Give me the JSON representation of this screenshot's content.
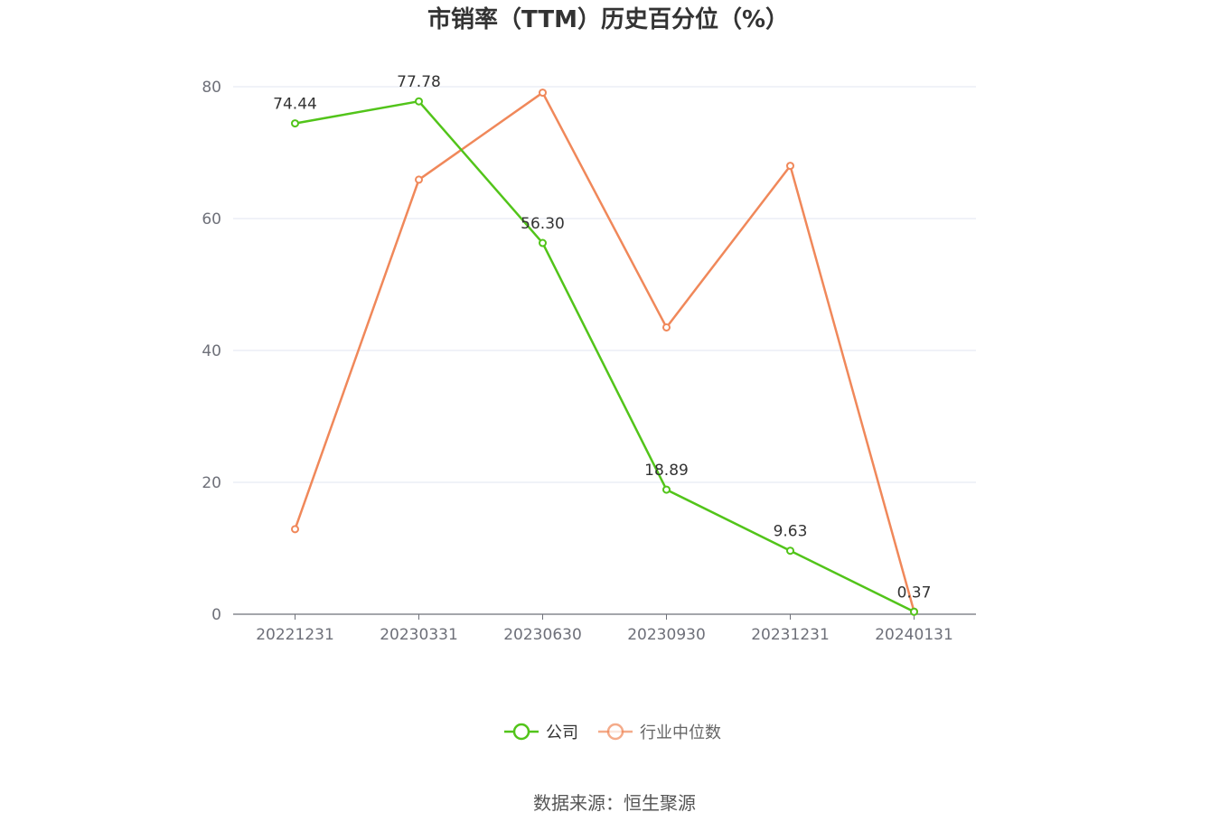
{
  "chart_data": {
    "type": "line",
    "title": "市销率（TTM）历史百分位（%）",
    "categories": [
      "20221231",
      "20230331",
      "20230630",
      "20230930",
      "20231231",
      "20240131"
    ],
    "y_ticks": [
      "0",
      "20",
      "40",
      "60",
      "80"
    ],
    "ylim": [
      0,
      80
    ],
    "grid": true,
    "legend_position": "bottom-center",
    "series": [
      {
        "name": "公司",
        "color": "#52c41a",
        "values": [
          74.44,
          77.78,
          56.3,
          18.89,
          9.63,
          0.37
        ],
        "labels": [
          "74.44",
          "77.78",
          "56.30",
          "18.89",
          "9.63",
          "0.37"
        ]
      },
      {
        "name": "行业中位数",
        "color": "#f0885a",
        "values": [
          12.9,
          65.9,
          79.1,
          43.5,
          68.0,
          0.4
        ]
      }
    ]
  },
  "source": "数据来源：恒生聚源"
}
